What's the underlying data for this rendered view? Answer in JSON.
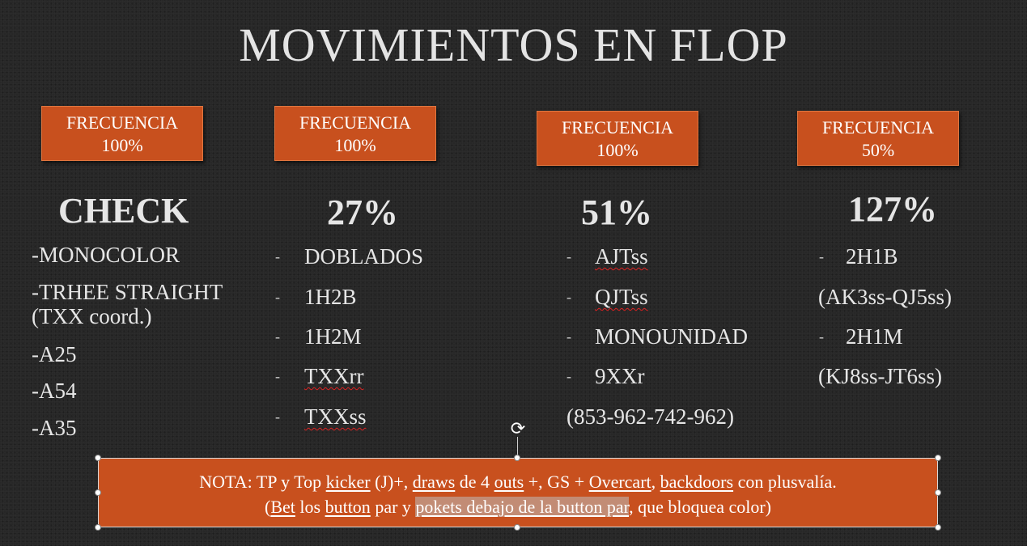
{
  "title": "MOVIMIENTOS EN FLOP",
  "columns": [
    {
      "freq_label": "FRECUENCIA",
      "freq_value": "100%",
      "heading": "CHECK",
      "items": [
        "-MONOCOLOR",
        "-TRHEE STRAIGHT",
        "(TXX coord.)",
        "-A25",
        "-A54",
        "-A35"
      ]
    },
    {
      "freq_label": "FRECUENCIA",
      "freq_value": "100%",
      "heading": "27%",
      "items": [
        "DOBLADOS",
        "1H2B",
        "1H2M",
        "TXXrr",
        "TXXss"
      ]
    },
    {
      "freq_label": "FRECUENCIA",
      "freq_value": "100%",
      "heading": "51%",
      "items": [
        "AJTss",
        "QJTss",
        "MONOUNIDAD",
        "9XXr",
        "(853-962-742-962)"
      ]
    },
    {
      "freq_label": "FRECUENCIA",
      "freq_value": "50%",
      "heading": "127%",
      "items": [
        "2H1B",
        "(AK3ss-QJ5ss)",
        "2H1M",
        "(KJ8ss-JT6ss)"
      ]
    }
  ],
  "note": {
    "l1": [
      "NOTA: TP y Top ",
      "kicker",
      " (J)+, ",
      "draws",
      " de 4 ",
      "outs",
      " +, GS + ",
      "Overcart",
      ", ",
      "backdoors",
      " con plusvalía."
    ],
    "l2": [
      "(",
      "Bet",
      " los ",
      "button",
      " par y ",
      "pokets debajo de la button par",
      ", que bloquea color)"
    ]
  },
  "colors": {
    "accent": "#c8501e",
    "background": "#272727",
    "text": "#e6e6e6"
  },
  "icons": {
    "rotate_handle": "rotate-icon"
  }
}
